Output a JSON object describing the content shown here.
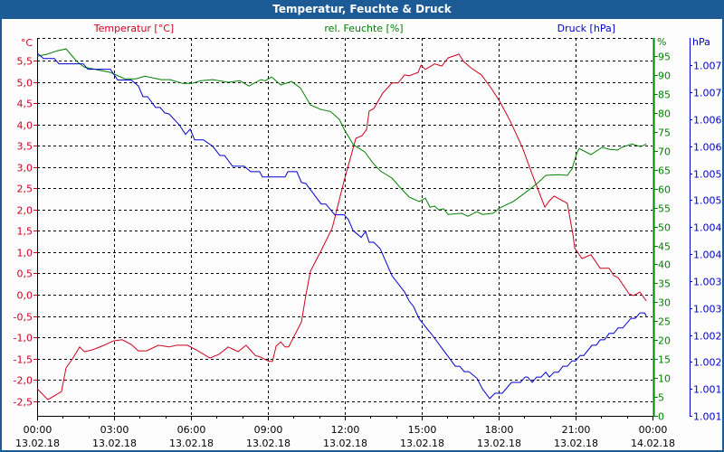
{
  "window": {
    "title": "Temperatur, Feuchte & Druck"
  },
  "colors": {
    "temperature": "#d0001c",
    "humidity": "#008000",
    "pressure": "#0000d0",
    "grid": "#000000",
    "titlebar": "#1c5b96"
  },
  "chart_data": {
    "type": "line",
    "title": "Temperatur, Feuchte & Druck",
    "xlabel": "",
    "x_unit": "hours since 13.02.18 00:00",
    "xlim": [
      0,
      24
    ],
    "x_ticks": [
      {
        "time": "00:00",
        "date": "13.02.18"
      },
      {
        "time": "03:00",
        "date": "13.02.18"
      },
      {
        "time": "06:00",
        "date": "13.02.18"
      },
      {
        "time": "09:00",
        "date": "13.02.18"
      },
      {
        "time": "12:00",
        "date": "13.02.18"
      },
      {
        "time": "15:00",
        "date": "13.02.18"
      },
      {
        "time": "18:00",
        "date": "13.02.18"
      },
      {
        "time": "21:00",
        "date": "13.02.18"
      },
      {
        "time": "00:00",
        "date": "14.02.18"
      }
    ],
    "axes": {
      "temperature": {
        "unit_label": "°C",
        "range": [
          -2.85,
          6.04
        ],
        "ticks": [
          "5,5",
          "5,0",
          "4,5",
          "4,0",
          "3,5",
          "3,0",
          "2,5",
          "2,0",
          "1,5",
          "1,0",
          "0,5",
          "0,0",
          "-0,5",
          "-1,0",
          "-1,5",
          "-2,0",
          "-2,5"
        ],
        "tick_values": [
          5.5,
          5.0,
          4.5,
          4.0,
          3.5,
          3.0,
          2.5,
          2.0,
          1.5,
          1.0,
          0.5,
          0.0,
          -0.5,
          -1.0,
          -1.5,
          -2.0,
          -2.5
        ]
      },
      "humidity": {
        "unit_label": "%",
        "range": [
          0,
          99.8
        ],
        "ticks": [
          "95",
          "90",
          "85",
          "80",
          "75",
          "70",
          "65",
          "60",
          "55",
          "50",
          "45",
          "40",
          "35",
          "30",
          "25",
          "20",
          "15",
          "10",
          "5",
          "0"
        ],
        "tick_values": [
          95,
          90,
          85,
          80,
          75,
          70,
          65,
          60,
          55,
          50,
          45,
          40,
          35,
          30,
          25,
          20,
          15,
          10,
          5,
          0
        ]
      },
      "pressure": {
        "unit_label": "hPa",
        "range": [
          1.0008,
          1.00781
        ],
        "ticks": [
          "1.007",
          "1.007",
          "1.006",
          "1.006",
          "1.005",
          "1.005",
          "1.004",
          "1.004",
          "1.003",
          "1.003",
          "1.002",
          "1.002",
          "1.001",
          "1.001"
        ],
        "tick_values": [
          1.0073,
          1.0068,
          1.0063,
          1.0058,
          1.0053,
          1.0048,
          1.0043,
          1.0038,
          1.0033,
          1.0028,
          1.0023,
          1.0018,
          1.0013,
          1.0008
        ]
      }
    },
    "series": [
      {
        "name": "Temperatur [°C]",
        "axis": "temperature",
        "color": "#d0001c",
        "x": [
          0,
          0.42,
          0.95,
          1.13,
          1.38,
          1.66,
          1.84,
          2.15,
          2.61,
          2.96,
          3.32,
          3.67,
          3.95,
          4.27,
          4.73,
          5.15,
          5.44,
          5.86,
          6.21,
          6.74,
          7.1,
          7.45,
          7.84,
          8.15,
          8.51,
          8.72,
          9.04,
          9.18,
          9.32,
          9.5,
          9.67,
          9.81,
          10.31,
          10.48,
          10.66,
          11.08,
          11.51,
          11.97,
          12.43,
          12.67,
          12.85,
          12.95,
          13.13,
          13.48,
          13.84,
          14.08,
          14.33,
          14.51,
          14.86,
          14.97,
          15.14,
          15.5,
          15.78,
          16.03,
          16.45,
          16.63,
          16.91,
          17.33,
          17.72,
          18.04,
          18.43,
          18.92,
          19.31,
          19.8,
          19.98,
          20.16,
          20.68,
          20.9,
          20.97,
          21.25,
          21.6,
          21.96,
          22.31,
          22.49,
          22.66,
          23.09,
          23.26,
          23.51,
          23.76
        ],
        "y": [
          -2.21,
          -2.47,
          -2.28,
          -1.72,
          -1.51,
          -1.23,
          -1.34,
          -1.3,
          -1.19,
          -1.09,
          -1.06,
          -1.17,
          -1.32,
          -1.32,
          -1.19,
          -1.23,
          -1.19,
          -1.19,
          -1.3,
          -1.49,
          -1.4,
          -1.23,
          -1.34,
          -1.19,
          -1.43,
          -1.47,
          -1.57,
          -1.57,
          -1.21,
          -1.11,
          -1.23,
          -1.23,
          -0.64,
          -0.02,
          0.55,
          1.04,
          1.57,
          2.68,
          3.68,
          3.74,
          3.89,
          4.32,
          4.38,
          4.74,
          4.98,
          4.98,
          5.17,
          5.15,
          5.23,
          5.4,
          5.3,
          5.43,
          5.38,
          5.57,
          5.66,
          5.49,
          5.34,
          5.17,
          4.85,
          4.55,
          4.11,
          3.47,
          2.83,
          2.06,
          2.21,
          2.32,
          2.15,
          1.4,
          1.09,
          0.85,
          0.94,
          0.62,
          0.62,
          0.45,
          0.4,
          0.02,
          -0.02,
          0.06,
          -0.15
        ]
      },
      {
        "name": "rel. Feuchte [%]",
        "axis": "humidity",
        "color": "#008000",
        "x": [
          0,
          0.39,
          0.78,
          1.13,
          1.55,
          1.84,
          2.36,
          2.86,
          3.42,
          3.85,
          4.2,
          4.84,
          5.19,
          5.68,
          6.04,
          6.39,
          6.85,
          7.45,
          7.91,
          8.26,
          8.72,
          8.9,
          9.14,
          9.5,
          9.92,
          10.27,
          10.66,
          11.08,
          11.44,
          11.79,
          11.97,
          12.33,
          12.78,
          13.09,
          13.38,
          13.84,
          14.19,
          14.51,
          14.9,
          15.14,
          15.32,
          15.5,
          15.67,
          15.85,
          16.03,
          16.56,
          16.8,
          17.15,
          17.37,
          17.79,
          18.04,
          18.57,
          19.03,
          19.49,
          19.84,
          20.33,
          20.68,
          20.86,
          21.04,
          21.14,
          21.6,
          22.03,
          22.31,
          22.63,
          22.8,
          23.19,
          23.54,
          23.76
        ],
        "y": [
          95,
          95.5,
          96.4,
          96.9,
          93.6,
          92.1,
          91.4,
          90.7,
          89,
          89,
          89.7,
          88.8,
          88.8,
          87.8,
          87.8,
          88.5,
          88.8,
          88.1,
          88.5,
          87.1,
          88.8,
          88.5,
          89.5,
          87.4,
          88.3,
          86.6,
          82.1,
          80.9,
          80.4,
          78.3,
          75.7,
          71.6,
          69.7,
          66.8,
          64.7,
          62.8,
          60.1,
          57.8,
          56.6,
          57.5,
          55.1,
          55.4,
          54.4,
          54.7,
          53.2,
          53.5,
          52.7,
          53.9,
          53.2,
          53.5,
          54.9,
          56.6,
          58.9,
          61.3,
          63.5,
          63.7,
          63.5,
          65.2,
          69.2,
          70.6,
          69,
          70.9,
          70.4,
          70.2,
          70.9,
          71.8,
          71.1,
          71.8
        ]
      },
      {
        "name": "Druck [hPa]",
        "axis": "pressure",
        "color": "#0000d0",
        "x": [
          0,
          0.25,
          0.67,
          0.85,
          1.8,
          1.98,
          2.86,
          3.14,
          3.67,
          3.95,
          4.13,
          4.31,
          4.62,
          4.8,
          4.98,
          5.15,
          5.54,
          5.79,
          5.97,
          6.14,
          6.49,
          6.85,
          7.13,
          7.31,
          7.62,
          8.08,
          8.33,
          8.68,
          8.79,
          9.67,
          9.78,
          10.13,
          10.31,
          10.48,
          11.08,
          11.26,
          11.61,
          11.97,
          12.14,
          12.32,
          12.64,
          12.81,
          12.95,
          13.13,
          13.38,
          13.84,
          14.33,
          14.51,
          14.68,
          14.9,
          15.39,
          15.92,
          16.31,
          16.48,
          16.66,
          16.84,
          17.15,
          17.37,
          17.65,
          17.86,
          18.14,
          18.5,
          18.85,
          19.03,
          19.13,
          19.31,
          19.48,
          19.66,
          19.84,
          19.98,
          20.16,
          20.33,
          20.51,
          20.68,
          20.86,
          21.0,
          21.18,
          21.32,
          21.64,
          21.81,
          21.96,
          22.13,
          22.31,
          22.49,
          22.66,
          22.84,
          23.16,
          23.33,
          23.51,
          23.69,
          23.76
        ],
        "y": [
          1.00753,
          1.00743,
          1.00743,
          1.00733,
          1.00733,
          1.00723,
          1.00723,
          1.00703,
          1.00703,
          1.00692,
          1.00672,
          1.00672,
          1.00652,
          1.00652,
          1.00642,
          1.0064,
          1.0062,
          1.00602,
          1.00612,
          1.00592,
          1.00592,
          1.0058,
          1.00563,
          1.00563,
          1.00543,
          1.00543,
          1.00533,
          1.00533,
          1.00523,
          1.00523,
          1.00533,
          1.00533,
          1.00513,
          1.00511,
          1.00473,
          1.00473,
          1.00453,
          1.00453,
          1.00444,
          1.00424,
          1.00411,
          1.00422,
          1.00402,
          1.00402,
          1.0039,
          1.0034,
          1.0031,
          1.00293,
          1.00283,
          1.0026,
          1.00231,
          1.00197,
          1.00172,
          1.00172,
          1.00162,
          1.00162,
          1.0015,
          1.0013,
          1.00112,
          1.00122,
          1.00122,
          1.00142,
          1.00142,
          1.00152,
          1.00152,
          1.00142,
          1.00152,
          1.00152,
          1.00161,
          1.00152,
          1.00161,
          1.00161,
          1.00172,
          1.00172,
          1.00182,
          1.00182,
          1.00192,
          1.00192,
          1.00211,
          1.00211,
          1.00221,
          1.00221,
          1.00233,
          1.00233,
          1.00243,
          1.00243,
          1.00261,
          1.00261,
          1.00271,
          1.00271,
          1.00265
        ]
      }
    ]
  }
}
